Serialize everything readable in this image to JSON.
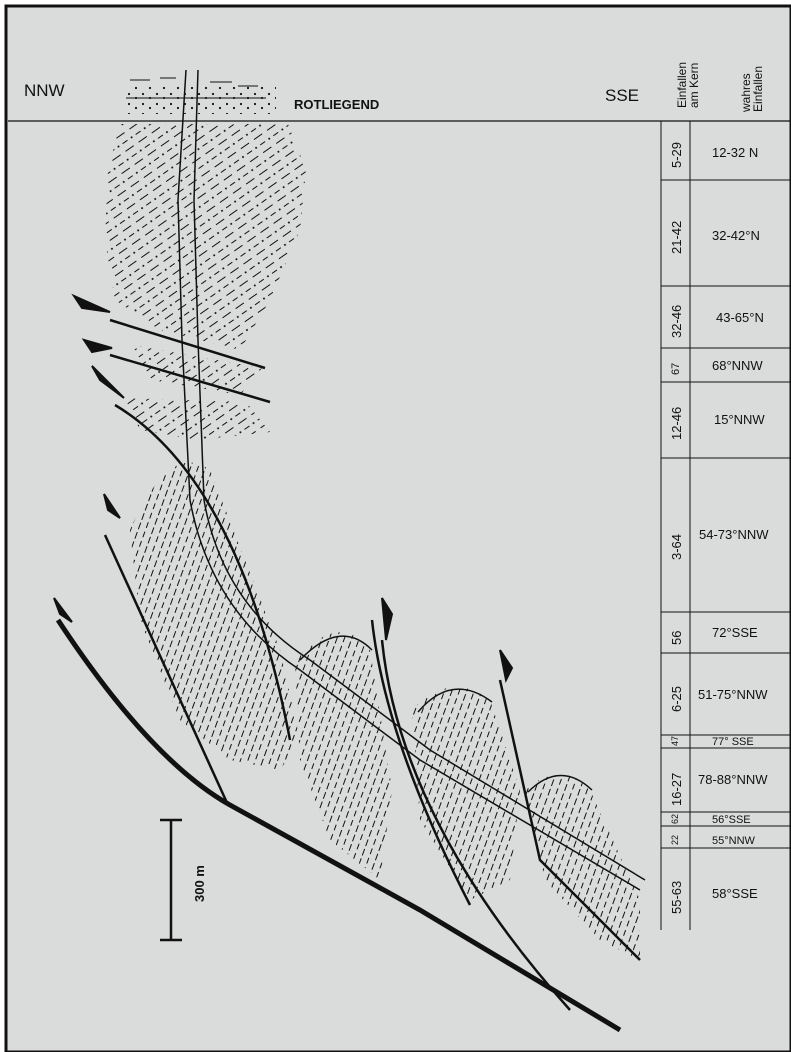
{
  "header": {
    "left_direction": "NNW",
    "right_direction": "SSE",
    "unit_label": "ROTLIEGEND",
    "col1_header": [
      "Einfallen",
      "am Kern"
    ],
    "col2_header": [
      "wahres",
      "Einfallen"
    ]
  },
  "scale_bar": {
    "label": "300 m"
  },
  "dip_table": [
    {
      "core": "5-29",
      "true": "12-32 N"
    },
    {
      "core": "21-42",
      "true": "32-42°N"
    },
    {
      "core": "32-46",
      "true": "43-65°N"
    },
    {
      "core": "67",
      "true": "68°NNW"
    },
    {
      "core": "12-46",
      "true": "15°NNW"
    },
    {
      "core": "3-64",
      "true": "54-73°NNW"
    },
    {
      "core": "56",
      "true": "72°SSE"
    },
    {
      "core": "6-25",
      "true": "51-75°NNW"
    },
    {
      "core": "47",
      "true": "77° SSE"
    },
    {
      "core": "16-27",
      "true": "78-88°NNW"
    },
    {
      "core": "62",
      "true": "56°SSE"
    },
    {
      "core": "22",
      "true": "55°NNW"
    },
    {
      "core": "55-63",
      "true": "58°SSE"
    }
  ],
  "colors": {
    "background": "#dadbdb",
    "ink": "#111111"
  }
}
